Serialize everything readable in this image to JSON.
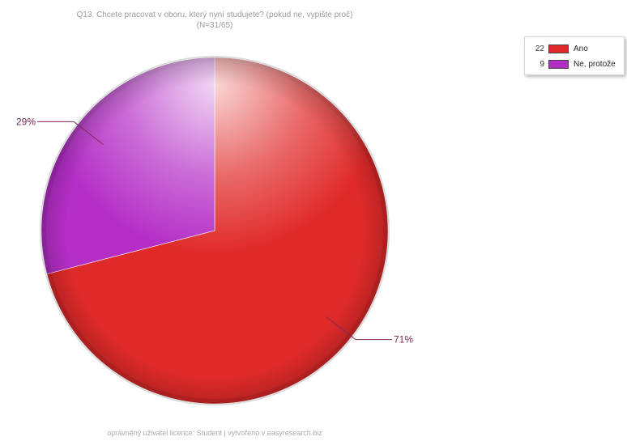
{
  "chart_data": {
    "type": "pie",
    "title": "Q13. Chcete pracovat v oboru, který nyní studujete? (pokud ne, vypište proč)",
    "subtitle": "(N=31/65)",
    "slices": [
      {
        "label": "Ano",
        "count": 22,
        "percent": 71,
        "percent_label": "71%",
        "color": "#e02a2a"
      },
      {
        "label": "Ne, protože",
        "count": 9,
        "percent": 29,
        "percent_label": "29%",
        "color": "#b42ec6"
      }
    ],
    "legend_placement": "top-right"
  },
  "footer": "oprávněný uživatel licence: Student | vytvořeno v easyresearch.biz"
}
